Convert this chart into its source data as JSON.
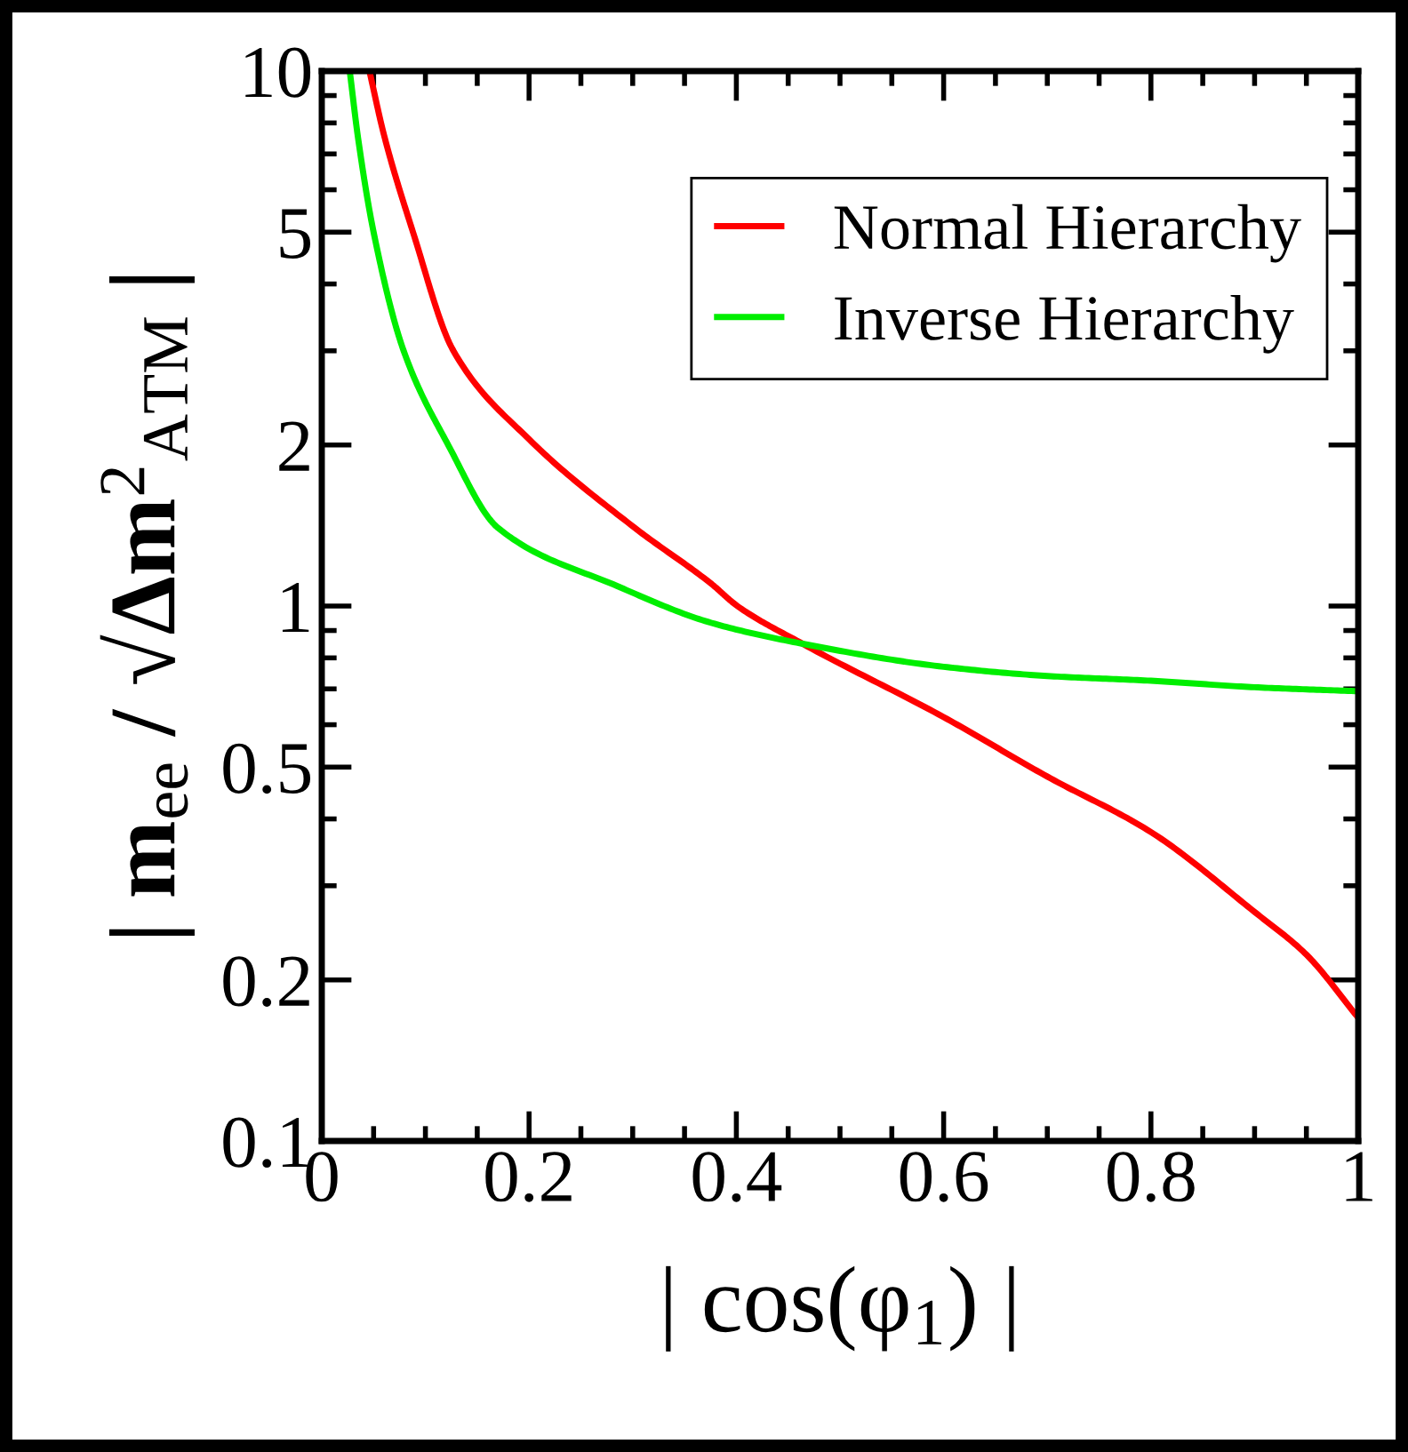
{
  "chart_data": {
    "type": "line",
    "xlabel": "| cos(φ$_{1}$) |",
    "ylabel": "| m$_{ee}$ / √Δm$^{2}$$_{ATM}$ |",
    "log": "y",
    "xlim": [
      0,
      1
    ],
    "ylim": [
      0.1,
      10
    ],
    "xticks": [
      0,
      0.2,
      0.4,
      0.6,
      0.8,
      1
    ],
    "yticks": [
      0.1,
      0.2,
      0.5,
      1,
      2,
      5,
      10
    ],
    "grid": false,
    "legend": "top right",
    "marker": "none",
    "line_style": "solid",
    "series": [
      {
        "name": "Normal Hierarchy",
        "color": "#ff0000",
        "x": [
          0.046,
          0.06,
          0.088,
          0.127,
          0.2,
          0.302,
          0.376,
          0.401,
          0.464,
          0.6,
          0.7,
          0.8,
          0.9,
          0.95,
          1.0
        ],
        "values": [
          10,
          7.6,
          5,
          3.0,
          2.05,
          1.4,
          1.1,
          1.0,
          0.85,
          0.62,
          0.48,
          0.378,
          0.268,
          0.223,
          0.17
        ]
      },
      {
        "name": "Inverse Hierarchy",
        "color": "#00ee00",
        "x": [
          0.027,
          0.035,
          0.05,
          0.079,
          0.122,
          0.17,
          0.285,
          0.376,
          0.464,
          0.6,
          0.7,
          0.8,
          0.9,
          1.0
        ],
        "values": [
          10,
          7.5,
          5,
          3.0,
          2,
          1.4,
          1.09,
          0.93,
          0.85,
          0.77,
          0.74,
          0.725,
          0.705,
          0.693
        ]
      }
    ]
  }
}
